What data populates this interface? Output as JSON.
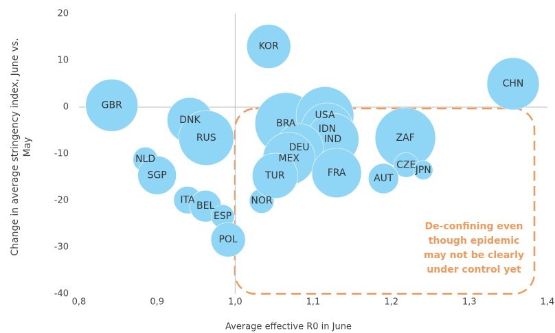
{
  "chart_data": {
    "type": "bubble",
    "x_label": "Average effective R0 in June",
    "y_label": "Change in average stringency index, June vs. May",
    "labels": [
      "KOR",
      "CHN",
      "GBR",
      "DNK",
      "RUS",
      "NLD",
      "SGP",
      "ITA",
      "BEL",
      "ESP",
      "POL",
      "NOR",
      "BRA",
      "USA",
      "IDN",
      "IND",
      "DEU",
      "MEX",
      "TUR",
      "FRA",
      "ZAF",
      "CZE",
      "JPN",
      "AUT"
    ],
    "x": [
      1.043,
      1.356,
      0.842,
      0.942,
      0.963,
      0.885,
      0.9,
      0.939,
      0.962,
      0.984,
      0.991,
      1.034,
      1.065,
      1.115,
      1.118,
      1.125,
      1.082,
      1.069,
      1.051,
      1.13,
      1.218,
      1.219,
      1.241,
      1.19
    ],
    "y": [
      13,
      5,
      0.4,
      -2.8,
      -6.6,
      -11.2,
      -14.6,
      -19.9,
      -21.2,
      -23.4,
      -28.4,
      -20.1,
      -3.5,
      -1.8,
      -4.7,
      -6.9,
      -8.7,
      -11,
      -14.7,
      -14.1,
      -6.6,
      -12.4,
      -13.5,
      -15.3
    ],
    "sizes": [
      32,
      38,
      38,
      33,
      40,
      18,
      28,
      20,
      23,
      17,
      25,
      18,
      45,
      42,
      38,
      38,
      35,
      38,
      33,
      36,
      44,
      18,
      14,
      22
    ],
    "color": "#8fd5f5",
    "xlim": [
      0.8,
      1.4
    ],
    "xticks": [
      {
        "value": 0.8,
        "label": "0,8"
      },
      {
        "value": 0.9,
        "label": "0,9"
      },
      {
        "value": 1.0,
        "label": "1,0"
      },
      {
        "value": 1.1,
        "label": "1,1"
      },
      {
        "value": 1.2,
        "label": "1,2"
      },
      {
        "value": 1.3,
        "label": "1,3"
      },
      {
        "value": 1.4,
        "label": "1,4"
      }
    ],
    "ylim": [
      -40,
      20
    ],
    "yticks": [
      -40,
      -30,
      -20,
      -10,
      0,
      10,
      20
    ],
    "annotation": [
      "De-confining even",
      "though epidemic",
      "may not be clearly",
      "under control yet"
    ]
  }
}
